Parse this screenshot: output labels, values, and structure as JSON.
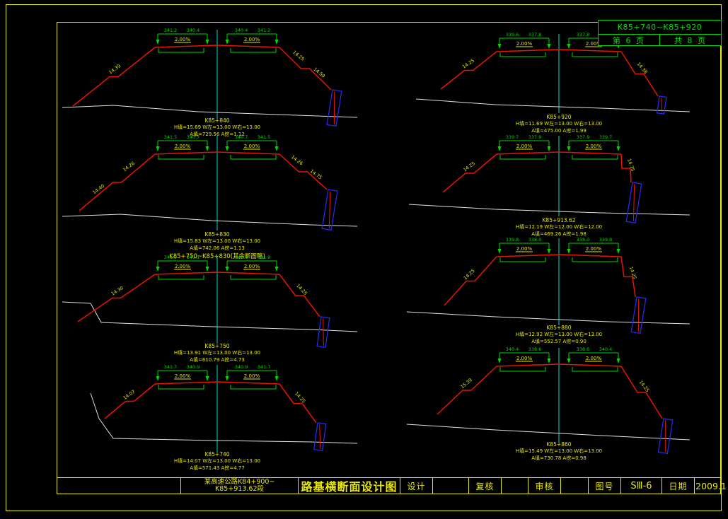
{
  "sheet": {
    "background": "#000000",
    "frame_color": "#e8e800",
    "accent_green": "#00d800",
    "accent_red": "#e81400",
    "accent_cyan": "#00d8d8",
    "accent_blue": "#2828e8"
  },
  "header_box": {
    "station_range": "K85+740~K85+920",
    "page_current": "第 6 页",
    "page_total": "共 8 页"
  },
  "title_bar": {
    "project_line1": "某高速公路K84+900~",
    "project_line2": "K85+913.62段",
    "drawing_title": "路基横断面设计图",
    "design_label": "设计",
    "review_label": "复核",
    "audit_label": "审核",
    "drawing_no_label": "图号",
    "drawing_no_value": "SⅢ-6",
    "date_label": "日期",
    "date_value": "2009.1"
  },
  "sections": [
    {
      "station": "K85+840",
      "line2": "H填=15.69 W左=13.00 W右=13.00",
      "line3": "A填=729.56 A挖=1.12",
      "elevations": [
        "341.2",
        "340.4",
        "340.4",
        "341.2"
      ],
      "grade_left": "2.00%",
      "grade_right": "2.00%",
      "slope_labels_left": [
        "14.39"
      ],
      "slope_labels_right": [
        "14.25",
        "14.59"
      ]
    },
    {
      "station": "K85+830",
      "line2": "H填=15.83 W左=13.00 W右=13.00",
      "line3": "A填=742.06 A挖=1.13",
      "note": "K85+750~K85+830(其余断面略)",
      "elevations": [
        "341.5",
        "340.7",
        "340.7",
        "341.5"
      ],
      "grade_left": "2.00%",
      "grade_right": "2.00%",
      "slope_labels_left": [
        "14.26",
        "14.40"
      ],
      "slope_labels_right": [
        "14.26",
        "14.75"
      ]
    },
    {
      "station": "K85+750",
      "line2": "H填=13.91 W左=13.00 W右=13.00",
      "line3": "A填=610.79 A挖=4.73",
      "elevations": [
        "341.9",
        "341.1",
        "341.1",
        "341.9"
      ],
      "grade_left": "2.00%",
      "grade_right": "2.00%",
      "slope_labels_left": [
        "14.30"
      ],
      "slope_labels_right": [
        "14.25"
      ]
    },
    {
      "station": "K85+740",
      "line2": "H填=14.07 W左=13.00 W右=13.00",
      "line3": "A填=571.43 A挖=4.77",
      "elevations": [
        "341.7",
        "340.9",
        "340.9",
        "341.7"
      ],
      "grade_left": "2.00%",
      "grade_right": "2.00%",
      "slope_labels_left": [
        "14.07"
      ],
      "slope_labels_right": [
        "14.25"
      ]
    },
    {
      "station": "K85+920",
      "line2": "H填=11.69 W左=13.00 W右=13.00",
      "line3": "A填=475.00 A挖=1.99",
      "elevations": [
        "339.6",
        "337.8",
        "337.8",
        "339.6"
      ],
      "grade_left": "2.00%",
      "grade_right": "2.00%",
      "slope_labels_left": [
        "14.25"
      ],
      "slope_labels_right": [
        "14.38"
      ]
    },
    {
      "station": "K85+913.62",
      "line2": "H填=12.19 W左=12.00 W右=12.00",
      "line3": "A填=469.26 A挖=1.98",
      "elevations": [
        "339.7",
        "337.9",
        "337.9",
        "339.7"
      ],
      "grade_left": "2.00%",
      "grade_right": "2.00%",
      "slope_labels_left": [
        "14.25"
      ],
      "slope_labels_right": [
        "14.75"
      ]
    },
    {
      "station": "K85+880",
      "line2": "H填=12.92 W左=13.00 W右=13.00",
      "line3": "A填=552.57 A挖=0.90",
      "elevations": [
        "339.8",
        "338.0",
        "338.0",
        "339.8"
      ],
      "grade_left": "2.00%",
      "grade_right": "2.00%",
      "slope_labels_left": [
        "14.25"
      ],
      "slope_labels_right": [
        "14.25"
      ]
    },
    {
      "station": "K85+860",
      "line2": "H填=15.49 W左=13.00 W右=13.00",
      "line3": "A填=730.78 A挖=0.98",
      "elevations": [
        "340.4",
        "338.6",
        "338.6",
        "340.4"
      ],
      "grade_left": "2.00%",
      "grade_right": "2.00%",
      "slope_labels_left": [
        "15.39"
      ],
      "slope_labels_right": [
        "14.25"
      ]
    }
  ]
}
